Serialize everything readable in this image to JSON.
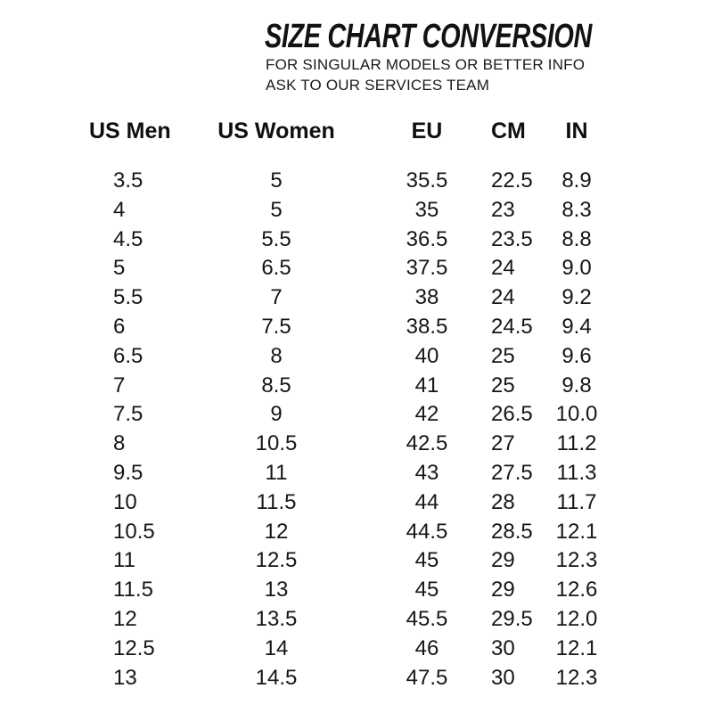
{
  "header": {
    "title": "SIZE CHART CONVERSION",
    "subtitle_line1": "FOR SINGULAR MODELS OR BETTER INFO",
    "subtitle_line2": "ASK TO OUR SERVICES TEAM"
  },
  "colors": {
    "text": "#141414",
    "background": "#ffffff"
  },
  "chart_data": {
    "type": "table",
    "title": "SIZE CHART CONVERSION",
    "columns": [
      "US Men",
      "US Women",
      "EU",
      "CM",
      "IN"
    ],
    "column_keys": [
      "us-men",
      "us-women",
      "eu",
      "cm",
      "in"
    ],
    "rows": [
      [
        "3.5",
        "5",
        "35.5",
        "22.5",
        "8.9"
      ],
      [
        "4",
        "5",
        "35",
        "23",
        "8.3"
      ],
      [
        "4.5",
        "5.5",
        "36.5",
        "23.5",
        "8.8"
      ],
      [
        "5",
        "6.5",
        "37.5",
        "24",
        "9.0"
      ],
      [
        "5.5",
        "7",
        "38",
        "24",
        "9.2"
      ],
      [
        "6",
        "7.5",
        "38.5",
        "24.5",
        "9.4"
      ],
      [
        "6.5",
        "8",
        "40",
        "25",
        "9.6"
      ],
      [
        "7",
        "8.5",
        "41",
        "25",
        "9.8"
      ],
      [
        "7.5",
        "9",
        "42",
        "26.5",
        "10.0"
      ],
      [
        "8",
        "10.5",
        "42.5",
        "27",
        "11.2"
      ],
      [
        "9.5",
        "11",
        "43",
        "27.5",
        "11.3"
      ],
      [
        "10",
        "11.5",
        "44",
        "28",
        "11.7"
      ],
      [
        "10.5",
        "12",
        "44.5",
        "28.5",
        "12.1"
      ],
      [
        "11",
        "12.5",
        "45",
        "29",
        "12.3"
      ],
      [
        "11.5",
        "13",
        "45",
        "29",
        "12.6"
      ],
      [
        "12",
        "13.5",
        "45.5",
        "29.5",
        "12.0"
      ],
      [
        "12.5",
        "14",
        "46",
        "30",
        "12.1"
      ],
      [
        "13",
        "14.5",
        "47.5",
        "30",
        "12.3"
      ]
    ]
  }
}
